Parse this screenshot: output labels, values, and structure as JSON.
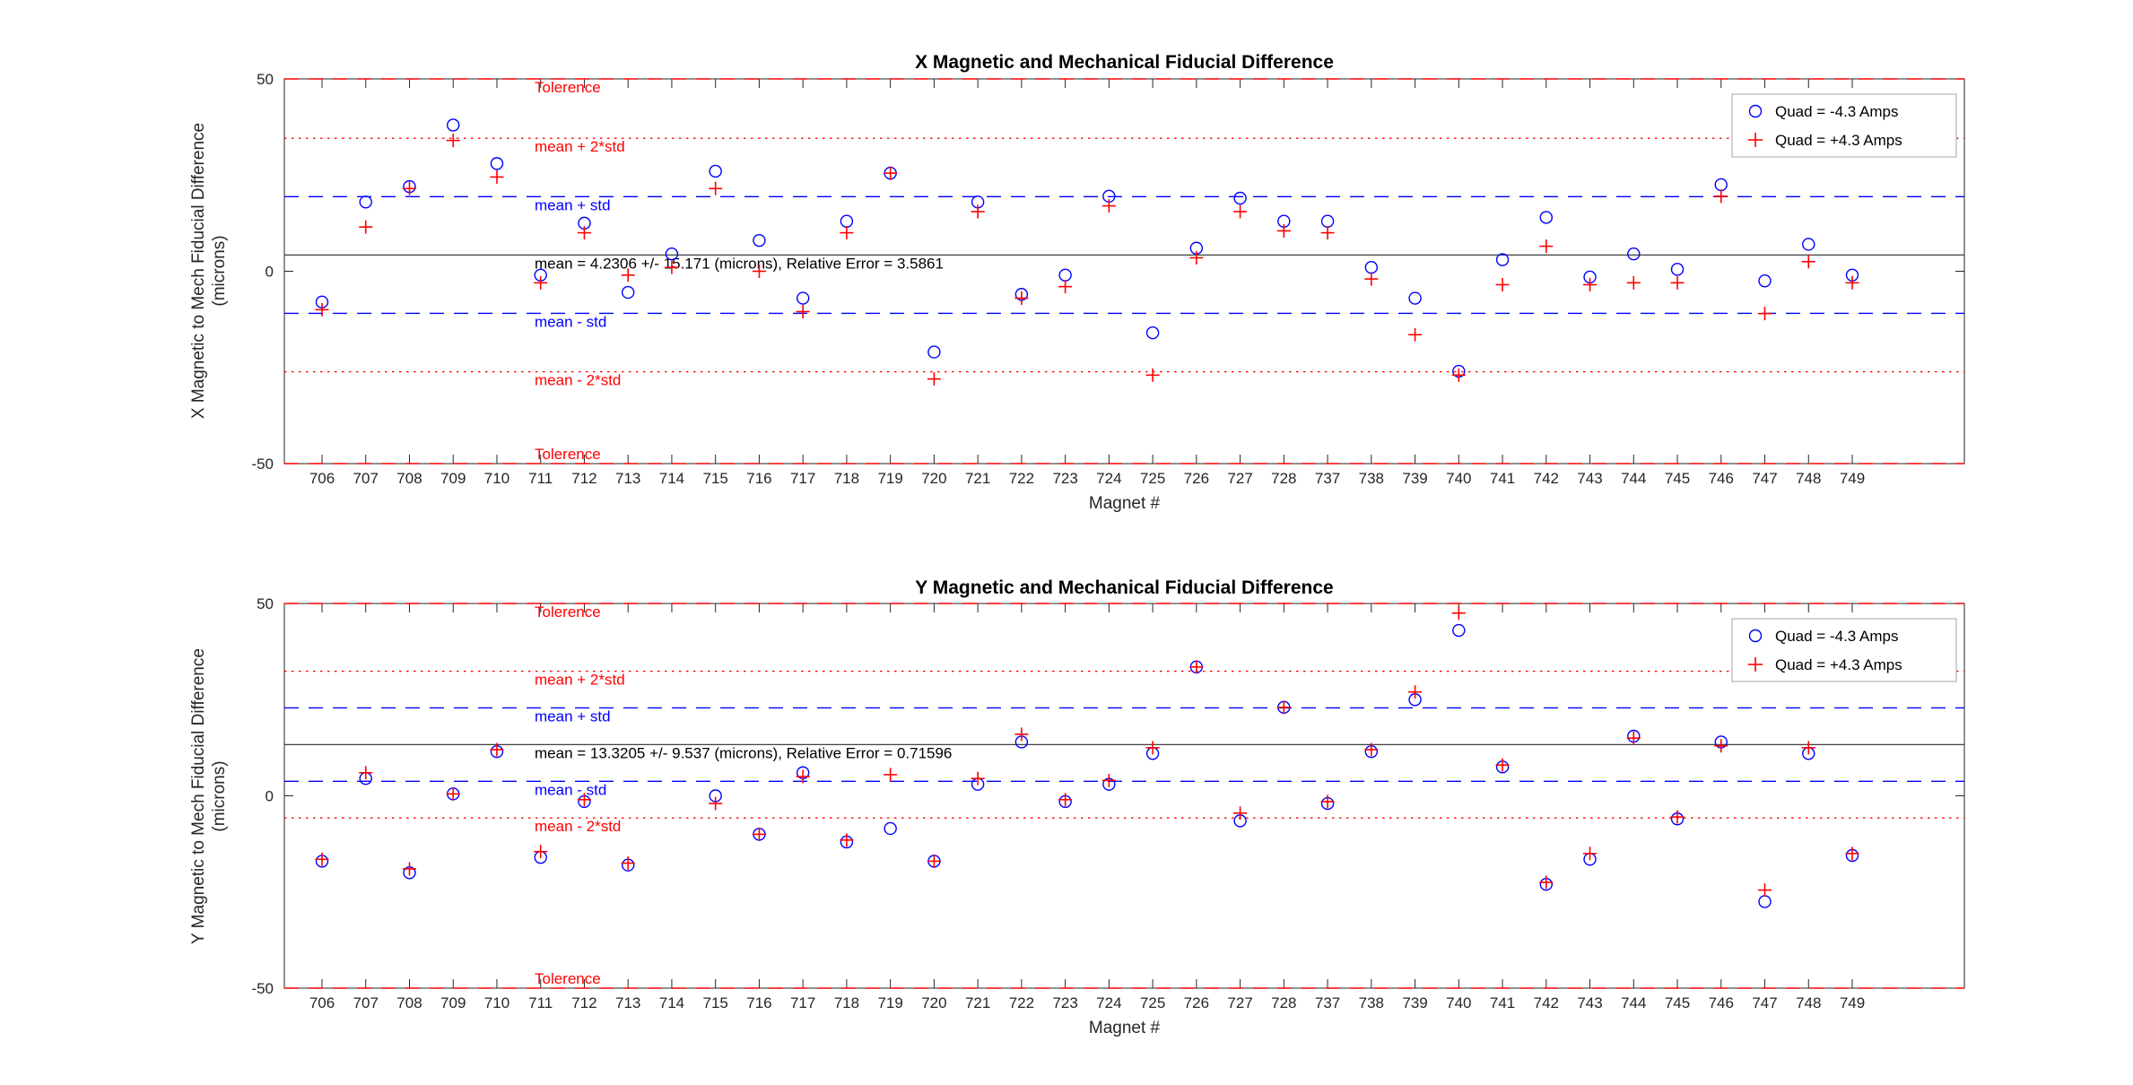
{
  "figure": {
    "background": "#ffffff"
  },
  "colors": {
    "axis": "#262626",
    "blue_series": "#0000ff",
    "red_series": "#ff0000",
    "mean_line": "#404040",
    "legend_border": "#a6a6a6"
  },
  "chart_data": [
    {
      "id": "x-fiducial-difference",
      "type": "scatter",
      "title": "X Magnetic and Mechanical Fiducial Difference",
      "xlabel": "Magnet #",
      "ylabel_line1": "X Magnetic to Mech Fiducial Difference",
      "ylabel_line2": "(microns)",
      "ylim": [
        -50,
        50
      ],
      "yticks": [
        {
          "value": 50,
          "label": "50"
        },
        {
          "value": 0,
          "label": "0"
        },
        {
          "value": -50,
          "label": "-50"
        }
      ],
      "categories": [
        "706",
        "707",
        "708",
        "709",
        "710",
        "711",
        "712",
        "713",
        "714",
        "715",
        "716",
        "717",
        "718",
        "719",
        "720",
        "721",
        "722",
        "723",
        "724",
        "725",
        "726",
        "727",
        "728",
        "737",
        "738",
        "739",
        "740",
        "741",
        "742",
        "743",
        "744",
        "745",
        "746",
        "747",
        "748",
        "749"
      ],
      "stats": {
        "mean": 4.2306,
        "std": 15.171,
        "relative_error": 3.5861,
        "tolerance": 50
      },
      "ref_lines": [
        {
          "label": "Tolerence",
          "value": 50,
          "style": "dashed",
          "color": "#ff0000",
          "label_side": "below"
        },
        {
          "label": "mean + 2*std",
          "value": 34.5726,
          "style": "dotted",
          "color": "#ff0000",
          "label_side": "below"
        },
        {
          "label": "mean + std",
          "value": 19.4016,
          "style": "dashed",
          "color": "#0000ff",
          "label_side": "below"
        },
        {
          "label": "mean = 4.2306 +/- 15.171 (microns), Relative Error = 3.5861",
          "value": 4.2306,
          "style": "solid",
          "color": "#404040",
          "label_color": "#000000",
          "label_side": "below"
        },
        {
          "label": "mean - std",
          "value": -10.9404,
          "style": "dashed",
          "color": "#0000ff",
          "label_side": "below"
        },
        {
          "label": "mean - 2*std",
          "value": -26.1114,
          "style": "dotted",
          "color": "#ff0000",
          "label_side": "below"
        },
        {
          "label": "Tolerence",
          "value": -50,
          "style": "dashed",
          "color": "#ff0000",
          "label_side": "above"
        }
      ],
      "series": [
        {
          "name": "Quad = -4.3 Amps",
          "marker": "circle",
          "color": "#0000ff",
          "values": [
            -8,
            18,
            22,
            38,
            28,
            -1,
            12.5,
            -5.5,
            4.5,
            26,
            8,
            -7,
            13,
            25.5,
            -21,
            18,
            -6,
            -1,
            19.5,
            -16,
            6,
            19,
            13,
            13,
            1,
            -7,
            -26,
            3,
            14,
            -1.5,
            4.5,
            0.5,
            22.5,
            -2.5,
            7,
            -1
          ]
        },
        {
          "name": "Quad = +4.3 Amps",
          "marker": "plus",
          "color": "#ff0000",
          "values": [
            -10,
            11.5,
            21.5,
            34,
            24.5,
            -3,
            10,
            -1,
            1,
            21.5,
            0,
            -10.5,
            10,
            25.5,
            -28,
            15.5,
            -7,
            -4,
            17,
            -27,
            3.5,
            15.5,
            10.5,
            10,
            -2,
            -16.5,
            -27,
            -3.5,
            6.5,
            -3.5,
            -3,
            -3,
            19.5,
            -11,
            2.5,
            -3
          ]
        }
      ]
    },
    {
      "id": "y-fiducial-difference",
      "type": "scatter",
      "title": "Y Magnetic and Mechanical Fiducial Difference",
      "xlabel": "Magnet #",
      "ylabel_line1": "Y Magnetic to Mech Fiducial Difference",
      "ylabel_line2": "(microns)",
      "ylim": [
        -50,
        50
      ],
      "yticks": [
        {
          "value": 50,
          "label": "50"
        },
        {
          "value": 0,
          "label": "0"
        },
        {
          "value": -50,
          "label": "-50"
        }
      ],
      "categories": [
        "706",
        "707",
        "708",
        "709",
        "710",
        "711",
        "712",
        "713",
        "714",
        "715",
        "716",
        "717",
        "718",
        "719",
        "720",
        "721",
        "722",
        "723",
        "724",
        "725",
        "726",
        "727",
        "728",
        "737",
        "738",
        "739",
        "740",
        "741",
        "742",
        "743",
        "744",
        "745",
        "746",
        "747",
        "748",
        "749"
      ],
      "stats": {
        "mean": 13.3205,
        "std": 9.537,
        "relative_error": 0.71596,
        "tolerance": 50
      },
      "ref_lines": [
        {
          "label": "Tolerence",
          "value": 50,
          "style": "dashed",
          "color": "#ff0000",
          "label_side": "below"
        },
        {
          "label": "mean + 2*std",
          "value": 32.3945,
          "style": "dotted",
          "color": "#ff0000",
          "label_side": "below"
        },
        {
          "label": "mean + std",
          "value": 22.8575,
          "style": "dashed",
          "color": "#0000ff",
          "label_side": "below"
        },
        {
          "label": "mean = 13.3205 +/- 9.537 (microns), Relative Error = 0.71596",
          "value": 13.3205,
          "style": "solid",
          "color": "#404040",
          "label_color": "#000000",
          "label_side": "below"
        },
        {
          "label": "mean - std",
          "value": 3.7835,
          "style": "dashed",
          "color": "#0000ff",
          "label_side": "below"
        },
        {
          "label": "mean - 2*std",
          "value": -5.754,
          "style": "dotted",
          "color": "#ff0000",
          "label_side": "below"
        },
        {
          "label": "Tolerence",
          "value": -50,
          "style": "dashed",
          "color": "#ff0000",
          "label_side": "above"
        }
      ],
      "series": [
        {
          "name": "Quad = -4.3 Amps",
          "marker": "circle",
          "color": "#0000ff",
          "values": [
            -17,
            4.5,
            -20,
            0.5,
            11.5,
            -16,
            -1.5,
            -18,
            null,
            0,
            -10,
            6,
            -12,
            -8.5,
            -17,
            3,
            14,
            -1.5,
            3,
            11,
            33.5,
            -6.5,
            23,
            -2,
            11.5,
            25,
            43,
            7.5,
            -23,
            -16.5,
            15.5,
            -6,
            14,
            -27.5,
            11,
            -15.5
          ]
        },
        {
          "name": "Quad = +4.3 Amps",
          "marker": "plus",
          "color": "#ff0000",
          "values": [
            -16.5,
            6,
            -19,
            0.5,
            12,
            -14.5,
            -1,
            -17.5,
            null,
            -2,
            -10,
            5,
            -11.5,
            5.5,
            -17,
            4.5,
            16,
            -1,
            4,
            12.5,
            33.5,
            -4.5,
            23,
            -1.5,
            12,
            27,
            47.5,
            8,
            -22.5,
            -15,
            15,
            -5.5,
            13,
            -24.5,
            12.5,
            -15
          ]
        }
      ]
    }
  ]
}
